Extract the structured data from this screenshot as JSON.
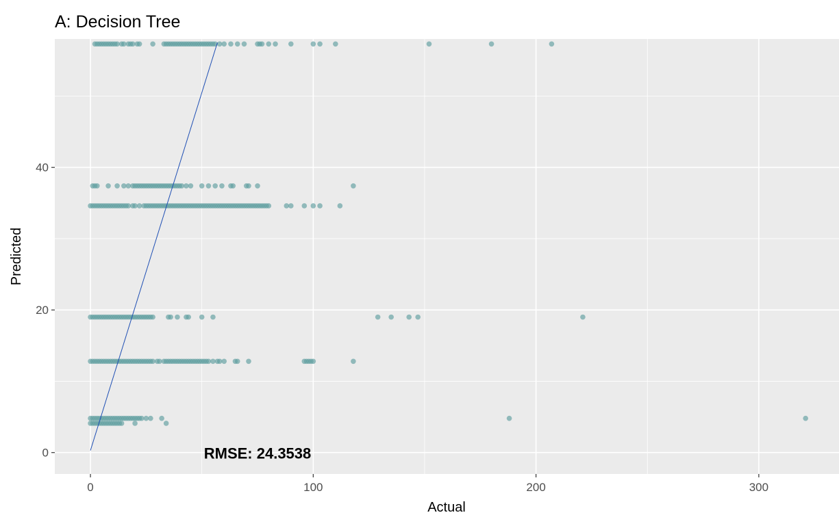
{
  "chart_data": {
    "type": "scatter",
    "title": "A: Decision Tree",
    "xlabel": "Actual",
    "ylabel": "Predicted",
    "xlim": [
      -16,
      336
    ],
    "ylim": [
      -3,
      58
    ],
    "x_ticks": [
      0,
      100,
      200,
      300
    ],
    "y_ticks": [
      0,
      20,
      40
    ],
    "grid": true,
    "point_color": "#5f9ea0",
    "panel_color": "#ebebeb",
    "grid_color": "#ffffff",
    "fit_line": {
      "color": "#1f4fb4",
      "from": [
        0,
        0.3
      ],
      "to": [
        57,
        57.5
      ]
    },
    "annotation": {
      "text": "RMSE: 24.3538",
      "x": 75,
      "y": 0
    },
    "levels": [
      {
        "y": 57.3,
        "x": [
          2,
          3,
          4,
          5,
          6,
          7,
          8,
          9,
          10,
          11,
          12,
          14,
          15,
          17,
          18,
          19,
          21,
          22,
          28,
          33,
          34,
          35,
          36,
          37,
          38,
          39,
          40,
          41,
          42,
          43,
          44,
          45,
          46,
          47,
          48,
          49,
          50,
          51,
          52,
          53,
          54,
          55,
          56,
          58,
          60,
          63,
          66,
          69,
          75,
          76,
          77,
          80,
          83,
          90,
          100,
          103,
          110,
          152,
          180,
          207
        ]
      },
      {
        "y": 37.4,
        "x": [
          1,
          2,
          3,
          8,
          12,
          15,
          17,
          19,
          20,
          21,
          22,
          23,
          24,
          25,
          26,
          27,
          28,
          29,
          30,
          31,
          32,
          33,
          34,
          35,
          36,
          37,
          38,
          39,
          40,
          41,
          43,
          45,
          50,
          53,
          56,
          59,
          63,
          64,
          70,
          71,
          75,
          118
        ]
      },
      {
        "y": 34.6,
        "x": [
          0,
          1,
          2,
          3,
          4,
          5,
          6,
          7,
          8,
          9,
          10,
          11,
          12,
          13,
          14,
          15,
          16,
          17,
          19,
          20,
          22,
          24,
          25,
          26,
          27,
          28,
          29,
          30,
          31,
          32,
          33,
          34,
          35,
          36,
          37,
          38,
          39,
          40,
          41,
          42,
          43,
          44,
          45,
          46,
          47,
          48,
          49,
          50,
          51,
          52,
          53,
          54,
          55,
          56,
          57,
          58,
          59,
          60,
          61,
          62,
          63,
          64,
          65,
          66,
          67,
          68,
          69,
          70,
          71,
          72,
          73,
          74,
          75,
          76,
          77,
          78,
          79,
          80,
          88,
          90,
          96,
          100,
          103,
          112
        ]
      },
      {
        "y": 19.0,
        "x": [
          0,
          1,
          2,
          3,
          4,
          5,
          6,
          7,
          8,
          9,
          10,
          11,
          12,
          13,
          14,
          15,
          16,
          17,
          18,
          19,
          20,
          21,
          22,
          23,
          24,
          25,
          26,
          27,
          28,
          35,
          36,
          39,
          43,
          44,
          50,
          55,
          129,
          135,
          143,
          147,
          221
        ]
      },
      {
        "y": 12.8,
        "x": [
          0,
          1,
          2,
          3,
          4,
          5,
          6,
          7,
          8,
          9,
          10,
          11,
          12,
          13,
          14,
          15,
          16,
          17,
          18,
          19,
          20,
          21,
          22,
          23,
          24,
          25,
          26,
          27,
          28,
          30,
          31,
          33,
          34,
          35,
          36,
          37,
          38,
          39,
          40,
          41,
          42,
          43,
          44,
          45,
          46,
          47,
          48,
          49,
          50,
          51,
          52,
          53,
          55,
          57,
          58,
          60,
          65,
          66,
          71,
          96,
          97,
          98,
          99,
          100,
          118
        ]
      },
      {
        "y": 4.8,
        "x": [
          0,
          1,
          2,
          3,
          4,
          5,
          6,
          7,
          8,
          9,
          10,
          11,
          12,
          13,
          14,
          15,
          16,
          17,
          18,
          19,
          20,
          21,
          22,
          23,
          25,
          27,
          32,
          188,
          321
        ]
      },
      {
        "y": 4.1,
        "x": [
          0,
          1,
          2,
          3,
          4,
          5,
          6,
          7,
          8,
          9,
          10,
          11,
          12,
          13,
          14,
          20,
          34
        ]
      }
    ]
  }
}
